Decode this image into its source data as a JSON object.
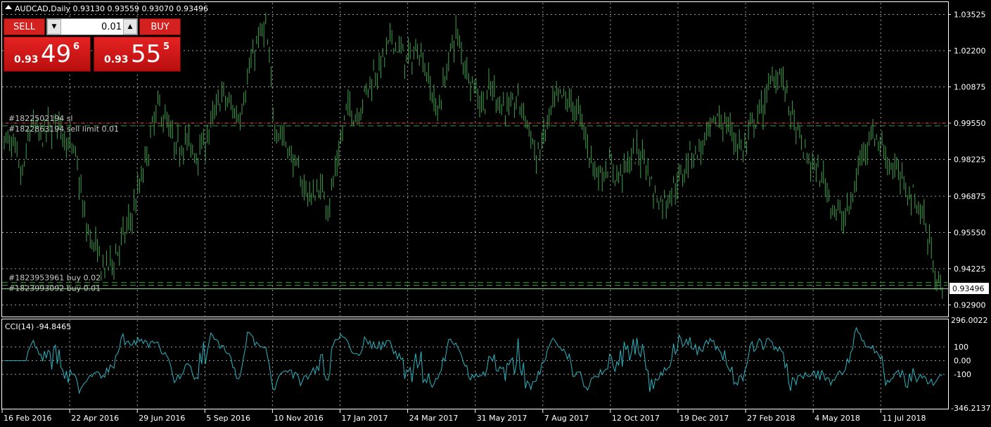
{
  "header": {
    "title": "AUDCAD,Daily  0.93130 0.93559 0.93070 0.93496"
  },
  "trade_panel": {
    "sell_label": "SELL",
    "buy_label": "BUY",
    "volume": "0.01",
    "sell_price_small": "0.93",
    "sell_price_big": "49",
    "sell_price_sup": "6",
    "buy_price_small": "0.93",
    "buy_price_big": "55",
    "buy_price_sup": "5"
  },
  "price_axis": {
    "labels": [
      "1.03525",
      "1.02200",
      "1.00875",
      "0.99550",
      "0.98225",
      "0.96875",
      "0.95550",
      "0.94225",
      "0.92900"
    ],
    "current_price": "0.93496"
  },
  "order_lines": [
    {
      "label": "#1822502194 sl",
      "price": 0.9955,
      "color": "#e02020",
      "style": "dotted"
    },
    {
      "label": "#1822863194 sell limit 0.01",
      "price": 0.9945,
      "color": "#2e9e2e",
      "style": "dashed"
    },
    {
      "label": "#1823953961 buy 0.02",
      "price": 0.9372,
      "color": "#2e9e2e",
      "style": "dashed"
    },
    {
      "label": "#1823993092 buy 0.01",
      "price": 0.9362,
      "color": "#2e9e2e",
      "style": "dashed"
    }
  ],
  "indicator": {
    "label": "CCI(14) -94.8465",
    "axis_labels": [
      "296.0022",
      "100",
      "0.00",
      "-100",
      "-346.2137"
    ]
  },
  "time_axis": {
    "labels": [
      "16 Feb 2016",
      "22 Apr 2016",
      "29 Jun 2016",
      "5 Sep 2016",
      "10 Nov 2016",
      "17 Jan 2017",
      "24 Mar 2017",
      "31 May 2017",
      "7 Aug 2017",
      "12 Oct 2017",
      "19 Dec 2017",
      "27 Feb 2018",
      "4 May 2018",
      "11 Jul 2018"
    ]
  },
  "chart_data": [
    {
      "type": "ohlc",
      "symbol": "AUDCAD",
      "timeframe": "Daily",
      "ohlc_last": {
        "open": 0.9313,
        "high": 0.93559,
        "low": 0.9307,
        "close": 0.93496
      },
      "ylim": [
        0.925,
        1.0395
      ],
      "x": [
        "16 Feb 2016",
        "22 Apr 2016",
        "29 Jun 2016",
        "5 Sep 2016",
        "10 Nov 2016",
        "17 Jan 2017",
        "24 Mar 2017",
        "31 May 2017",
        "7 Aug 2017",
        "12 Oct 2017",
        "19 Dec 2017",
        "27 Feb 2018",
        "4 May 2018",
        "11 Jul 2018"
      ],
      "close_path": [
        0.99,
        0.986,
        0.975,
        0.996,
        0.99,
        0.993,
        0.996,
        0.989,
        0.982,
        0.958,
        0.95,
        0.942,
        0.945,
        0.952,
        0.96,
        0.972,
        0.986,
        1.002,
        0.996,
        0.985,
        0.99,
        0.984,
        0.987,
        0.995,
        1.006,
        1.002,
        0.998,
        1.012,
        1.025,
        1.03,
        0.995,
        0.99,
        0.982,
        0.974,
        0.968,
        0.972,
        0.966,
        0.982,
        1.002,
        0.998,
        1.006,
        1.014,
        1.018,
        1.027,
        1.021,
        1.018,
        1.024,
        1.012,
        0.999,
        1.014,
        1.029,
        1.018,
        1.01,
        1.002,
        1.008,
        1.003,
        1.0,
        1.004,
        0.996,
        0.982,
        0.992,
        1.003,
        1.005,
        1.002,
        0.997,
        0.983,
        0.976,
        0.98,
        0.976,
        0.98,
        0.984,
        0.984,
        0.97,
        0.966,
        0.971,
        0.975,
        0.985,
        0.985,
        0.99,
        0.998,
        0.995,
        0.99,
        0.985,
        0.995,
        1.0,
        1.011,
        1.015,
        1.002,
        0.99,
        0.983,
        0.978,
        0.974,
        0.964,
        0.96,
        0.967,
        0.984,
        0.992,
        0.989,
        0.982,
        0.977,
        0.972,
        0.968,
        0.96,
        0.945,
        0.932
      ]
    },
    {
      "type": "line",
      "name": "CCI(14)",
      "last": -94.8465,
      "ylim": [
        -346.2137,
        296.0022
      ]
    }
  ]
}
